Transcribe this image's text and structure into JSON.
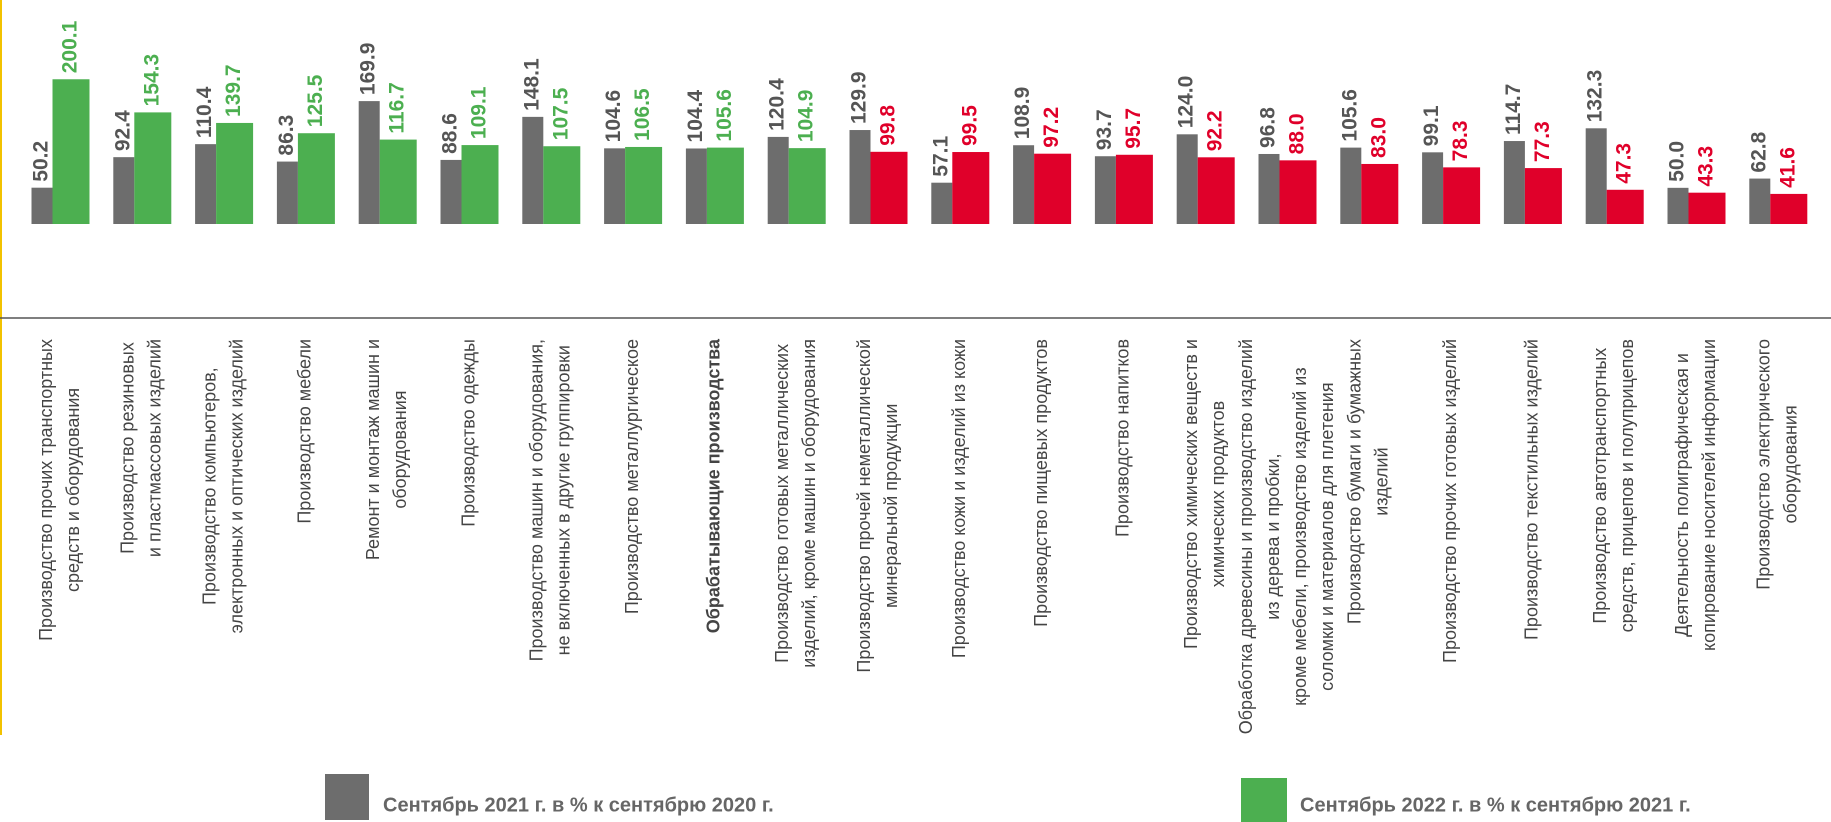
{
  "chart_data": {
    "type": "bar",
    "categories": [
      [
        "Производство прочих транспортных",
        "средств и оборудования"
      ],
      [
        "Производство резиновых",
        "и пластмассовых изделий"
      ],
      [
        "Производство компьютеров,",
        "электронных и оптических изделий"
      ],
      [
        "Производство мебели"
      ],
      [
        "Ремонт и монтаж машин и",
        "оборудования"
      ],
      [
        "Производство одежды"
      ],
      [
        "Производство машин и оборудования,",
        "не включенных в другие группировки"
      ],
      [
        "Производство  металлургическое"
      ],
      [
        "Обрабатывающие производства"
      ],
      [
        "Производство готовых металлических",
        "изделий, кроме машин и оборудования"
      ],
      [
        "Производство прочей неметаллической",
        "минеральной продукции"
      ],
      [
        "Производство кожи и изделий из кожи"
      ],
      [
        "Производство пищевых продуктов"
      ],
      [
        "Производство напитков"
      ],
      [
        "Производство химических  веществ и",
        "химических продуктов"
      ],
      [
        "Обработка древесины и производство изделий",
        "из дерева и пробки,",
        "кроме мебели, производство изделий из",
        "соломки и материалов для плетения"
      ],
      [
        "Производство бумаги и бумажных",
        "изделий"
      ],
      [
        "Производство прочих  готовых изделий"
      ],
      [
        "Производство текстильных изделий"
      ],
      [
        "Производство автотранспортных",
        "средств, прицепов и полуприцепов"
      ],
      [
        "Деятельность полиграфическая и",
        "копирование носителей информации"
      ],
      [
        "Производство электрического",
        "оборудования"
      ]
    ],
    "highlight_category": 8,
    "series": [
      {
        "name": "Сентябрь  2021 г. в % к сентябрю 2020 г.",
        "color": "#6d6d6d",
        "label_color": "#555555",
        "values": [
          50.2,
          92.4,
          110.4,
          86.3,
          169.9,
          88.6,
          148.1,
          104.6,
          104.4,
          120.4,
          129.9,
          57.1,
          108.9,
          93.7,
          124.0,
          96.8,
          105.6,
          99.1,
          114.7,
          132.3,
          50.0,
          62.8
        ],
        "value_labels": [
          "50.2",
          "92.4",
          "110.4",
          "86.3",
          "169.9",
          "88.6",
          "148.1",
          "104.6",
          "104.4",
          "120.4",
          "129.9",
          "57.1",
          "108.9",
          "93.7",
          "124.0",
          "96.8",
          "105.6",
          "99.1",
          "114.7",
          "132.3",
          "50.0",
          "62.8"
        ]
      },
      {
        "name": "Сентябрь 2022 г. в % к сентябрю 2021 г.",
        "color": "#4caf50",
        "colors": [
          "#4caf50",
          "#4caf50",
          "#4caf50",
          "#4caf50",
          "#4caf50",
          "#4caf50",
          "#4caf50",
          "#4caf50",
          "#4caf50",
          "#4caf50",
          "#e0002a",
          "#e0002a",
          "#e0002a",
          "#e0002a",
          "#e0002a",
          "#e0002a",
          "#e0002a",
          "#e0002a",
          "#e0002a",
          "#e0002a",
          "#e0002a",
          "#e0002a"
        ],
        "values": [
          200.1,
          154.3,
          139.7,
          125.5,
          116.7,
          109.1,
          107.5,
          106.5,
          105.6,
          104.9,
          99.8,
          99.5,
          97.2,
          95.7,
          92.2,
          88.0,
          83.0,
          78.3,
          77.3,
          47.3,
          43.3,
          41.6
        ],
        "value_labels": [
          "200.1",
          "154.3",
          "139.7",
          "125.5",
          "116.7",
          "109.1",
          "107.5",
          "106.5",
          "105.6",
          "104.9",
          "99.8",
          "99.5",
          "97.2",
          "95.7",
          "92.2",
          "88.0",
          "83.0",
          "78.3",
          "77.3",
          "47.3",
          "43.3",
          "41.6"
        ]
      }
    ],
    "ylim": [
      0,
      300
    ]
  }
}
